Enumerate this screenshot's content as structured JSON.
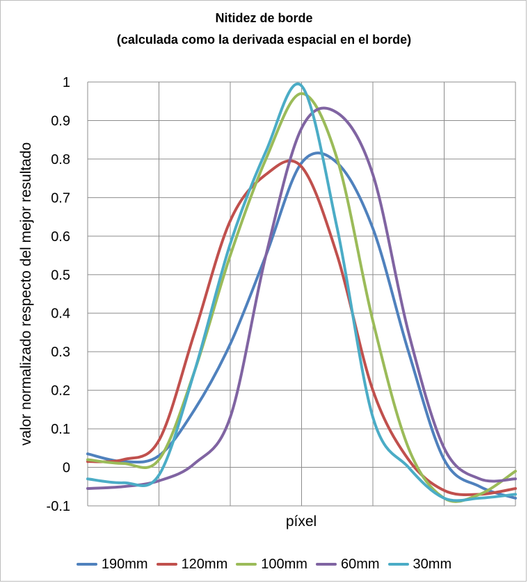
{
  "chart_data": {
    "type": "line",
    "title": "Nitidez de borde",
    "subtitle": "(calculada como la derivada espacial en el borde)",
    "xlabel": "píxel",
    "ylabel": "valor normalizado respecto del mejor resultado",
    "ylim": [
      -0.1,
      1
    ],
    "xlim": [
      0,
      12
    ],
    "yticks": [
      "-0.1",
      "0",
      "0.1",
      "0.2",
      "0.3",
      "0.4",
      "0.5",
      "0.6",
      "0.7",
      "0.8",
      "0.9",
      "1"
    ],
    "x_grid_count": 6,
    "grid": true,
    "legend_position": "bottom",
    "series": [
      {
        "name": "190mm",
        "color": "#4f81bd",
        "x": [
          0,
          1,
          2,
          3,
          4,
          5,
          6,
          7,
          8,
          9,
          10,
          11,
          12
        ],
        "values": [
          0.035,
          0.015,
          0.03,
          0.15,
          0.32,
          0.55,
          0.79,
          0.79,
          0.62,
          0.3,
          0.02,
          -0.05,
          -0.08
        ]
      },
      {
        "name": "120mm",
        "color": "#c0504d",
        "x": [
          0,
          1,
          2,
          3,
          4,
          5,
          6,
          7,
          8,
          9,
          10,
          11,
          12
        ],
        "values": [
          0.015,
          0.02,
          0.07,
          0.35,
          0.64,
          0.76,
          0.78,
          0.55,
          0.2,
          0.02,
          -0.06,
          -0.07,
          -0.055
        ]
      },
      {
        "name": "100mm",
        "color": "#9bbb59",
        "x": [
          0,
          1,
          2,
          3,
          4,
          5,
          6,
          7,
          8,
          9,
          10,
          11,
          12
        ],
        "values": [
          0.02,
          0.01,
          0.02,
          0.25,
          0.55,
          0.8,
          0.97,
          0.8,
          0.38,
          0.05,
          -0.08,
          -0.07,
          -0.01
        ]
      },
      {
        "name": "60mm",
        "color": "#8064a2",
        "x": [
          0,
          1,
          2,
          3,
          4,
          5,
          6,
          7,
          8,
          9,
          10,
          11,
          12
        ],
        "values": [
          -0.055,
          -0.05,
          -0.035,
          0.01,
          0.13,
          0.55,
          0.88,
          0.92,
          0.76,
          0.35,
          0.05,
          -0.03,
          -0.03
        ]
      },
      {
        "name": "30mm",
        "color": "#4bacc6",
        "x": [
          0,
          1,
          2,
          3,
          4,
          5,
          6,
          7,
          8,
          9,
          10,
          11,
          12
        ],
        "values": [
          -0.03,
          -0.04,
          -0.02,
          0.25,
          0.58,
          0.82,
          0.99,
          0.62,
          0.13,
          0.0,
          -0.08,
          -0.08,
          -0.07
        ]
      }
    ]
  }
}
